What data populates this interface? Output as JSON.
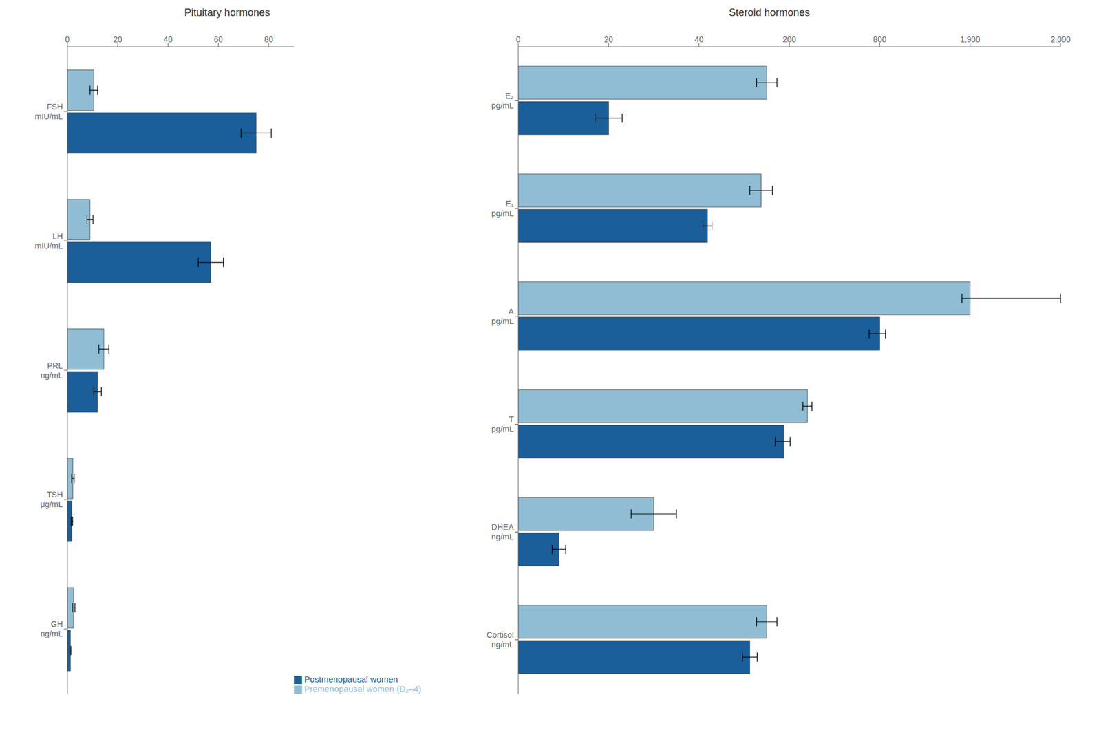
{
  "chart_data": [
    {
      "type": "bar",
      "orientation": "horizontal",
      "title": "Pituitary hormones",
      "categories": [
        "FSH\nmIU/mL",
        "LH\nmIU/mL",
        "PRL\nng/mL",
        "TSH\nμg/mL",
        "GH\nng/mL"
      ],
      "series": [
        {
          "name": "Premenopausal women (D₂–4)",
          "color": "#91bdd4",
          "values": [
            10.5,
            9.0,
            14.5,
            2.2,
            2.5
          ],
          "errors": [
            1.5,
            1.2,
            2.0,
            0.5,
            0.5
          ]
        },
        {
          "name": "Postmenopausal women",
          "color": "#1a5e9a",
          "values": [
            75.0,
            57.0,
            12.0,
            1.8,
            1.2
          ],
          "errors": [
            6.0,
            5.0,
            1.5,
            0.3,
            0.2
          ]
        }
      ],
      "xlim": [
        0,
        90
      ],
      "xticks": [
        0,
        20,
        40,
        60,
        80
      ],
      "grid": false,
      "legend": "lower right"
    },
    {
      "type": "bar",
      "orientation": "horizontal",
      "title": "Steroid hormones",
      "categories": [
        "E₂\npg/mL",
        "E₁\npg/mL",
        "A\npg/mL",
        "T\npg/mL",
        "DHEA\nng/mL",
        "Cortisol\nng/mL"
      ],
      "series": [
        {
          "name": "Premenopausal women (D₂–4)",
          "color": "#91bdd4",
          "values": [
            160.0,
            150.0,
            1900.0,
            320.0,
            30.0,
            160.0
          ],
          "errors": [
            18.0,
            20.0,
            100.0,
            30.0,
            5.0,
            18.0
          ]
        },
        {
          "name": "Postmenopausal women",
          "color": "#1a5e9a",
          "values": [
            20.0,
            55.0,
            800.0,
            190.0,
            9.0,
            130.0
          ],
          "errors": [
            3.0,
            8.0,
            70.0,
            15.0,
            1.5,
            13.0
          ]
        }
      ],
      "xlim": [
        0,
        2000
      ],
      "xticks": [
        0,
        20,
        40,
        200,
        800,
        {
          "value": 1900,
          "label": "1,900"
        },
        {
          "value": 2000,
          "label": "2,000"
        }
      ],
      "grid": false
    }
  ]
}
